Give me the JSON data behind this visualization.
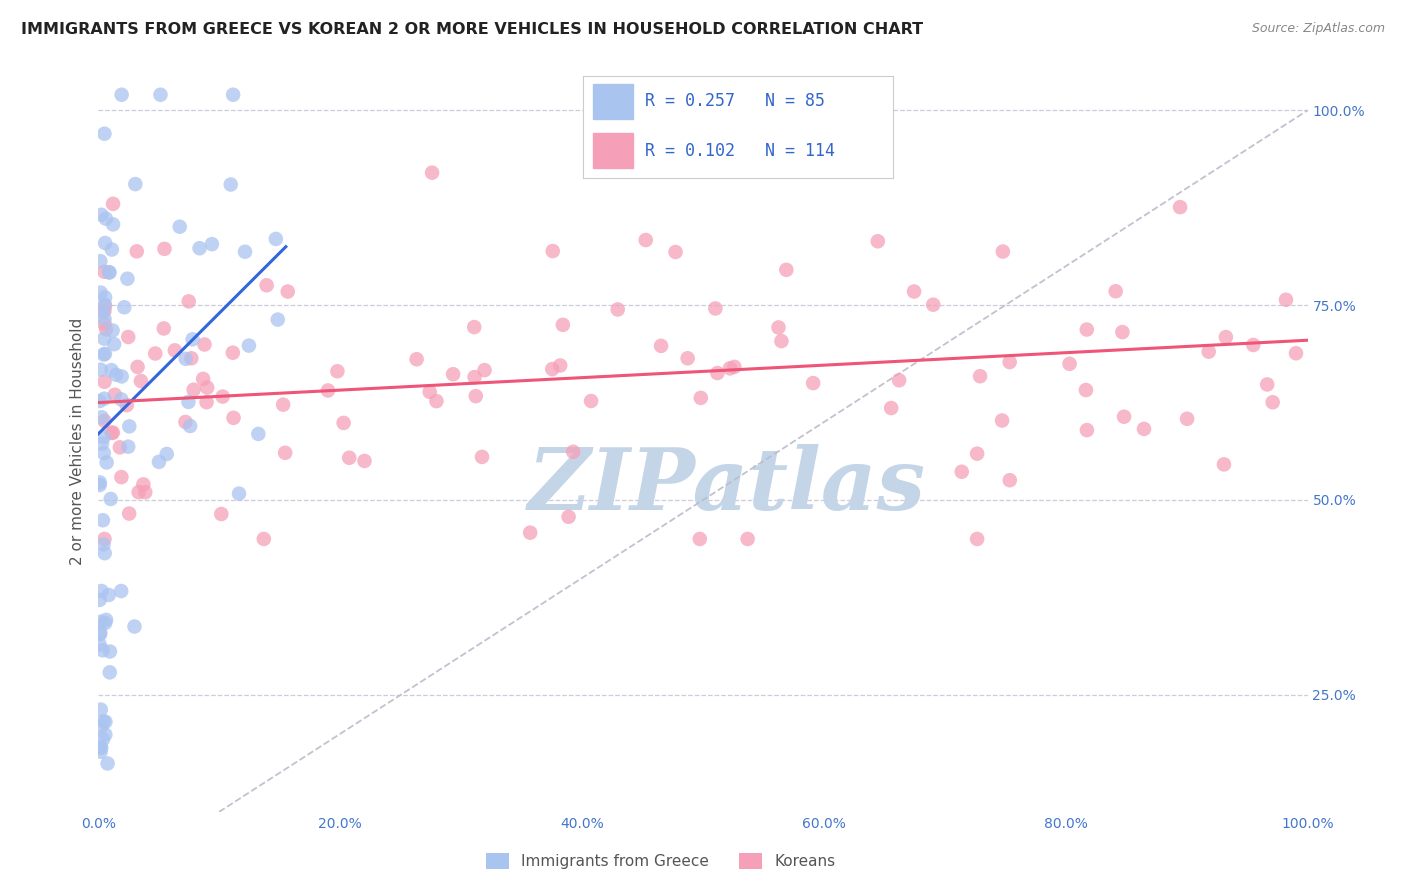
{
  "title": "IMMIGRANTS FROM GREECE VS KOREAN 2 OR MORE VEHICLES IN HOUSEHOLD CORRELATION CHART",
  "source": "Source: ZipAtlas.com",
  "ylabel": "2 or more Vehicles in Household",
  "xlim": [
    0.0,
    1.0
  ],
  "ylim": [
    0.1,
    1.05
  ],
  "ytick_values": [
    0.25,
    0.5,
    0.75,
    1.0
  ],
  "ytick_labels": [
    "25.0%",
    "50.0%",
    "75.0%",
    "100.0%"
  ],
  "xtick_values": [
    0.0,
    0.2,
    0.4,
    0.6,
    0.8,
    1.0
  ],
  "xtick_labels": [
    "0.0%",
    "20.0%",
    "40.0%",
    "60.0%",
    "80.0%",
    "100.0%"
  ],
  "greece_R": 0.257,
  "greece_N": 85,
  "korean_R": 0.102,
  "korean_N": 114,
  "greece_color": "#aac4f0",
  "korean_color": "#f5a0b8",
  "greece_line_color": "#3366dd",
  "korean_line_color": "#ee5577",
  "diagonal_color": "#bbbbcc",
  "background_color": "#ffffff",
  "grid_color": "#ccccdd",
  "title_color": "#222222",
  "axis_tick_color": "#4477cc",
  "legend_text_color": "#3366cc",
  "watermark_text": "ZIPatlas",
  "watermark_color": "#c5d5e8",
  "greece_trend_x0": 0.0,
  "greece_trend_x1": 0.155,
  "greece_trend_y0": 0.585,
  "greece_trend_y1": 0.825,
  "korean_trend_x0": 0.0,
  "korean_trend_x1": 1.0,
  "korean_trend_y0": 0.625,
  "korean_trend_y1": 0.705
}
